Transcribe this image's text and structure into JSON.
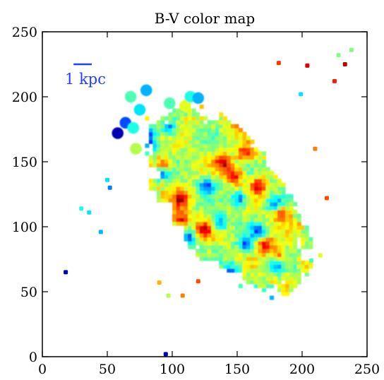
{
  "chart_data": {
    "type": "heatmap",
    "title": "B-V color map",
    "xlabel": "",
    "ylabel": "",
    "xlim": [
      0,
      250
    ],
    "ylim": [
      0,
      250
    ],
    "x_ticks": [
      0,
      50,
      100,
      150,
      200,
      250
    ],
    "y_ticks": [
      0,
      50,
      100,
      150,
      200,
      250
    ],
    "x_tick_labels": [
      "0",
      "50",
      "100",
      "150",
      "200",
      "250"
    ],
    "y_tick_labels": [
      "0",
      "50",
      "100",
      "150",
      "200",
      "250"
    ],
    "grid": false,
    "colormap": "jet",
    "scale_bar": {
      "label": "1 kpc",
      "x_start": 24,
      "x_end": 38,
      "y": 225
    },
    "galaxy": {
      "center": [
        140,
        120
      ],
      "major_axis_angle_deg": -52,
      "semi_major": 85,
      "semi_minor": 42
    },
    "red_regions": [
      [
        138,
        148
      ],
      [
        147,
        138
      ],
      [
        155,
        155
      ],
      [
        165,
        130
      ],
      [
        182,
        110
      ],
      [
        92,
        146
      ],
      [
        105,
        120
      ],
      [
        170,
        85
      ],
      [
        123,
        96
      ],
      [
        180,
        75
      ],
      [
        105,
        105
      ],
      [
        150,
        180
      ]
    ],
    "blue_regions": [
      [
        68,
        158
      ],
      [
        80,
        170
      ],
      [
        90,
        140
      ],
      [
        125,
        130
      ],
      [
        135,
        102
      ],
      [
        155,
        85
      ],
      [
        165,
        95
      ],
      [
        178,
        115
      ],
      [
        112,
        90
      ],
      [
        150,
        120
      ],
      [
        82,
        160
      ],
      [
        96,
        175
      ],
      [
        58,
        174
      ],
      [
        145,
        65
      ],
      [
        178,
        70
      ],
      [
        175,
        45
      ]
    ],
    "outlying_pixels": [
      {
        "x": 233,
        "y": 225,
        "value": 0.95
      },
      {
        "x": 204,
        "y": 224,
        "value": 0.9
      },
      {
        "x": 182,
        "y": 226,
        "value": 0.82
      },
      {
        "x": 199,
        "y": 202,
        "value": 0.35
      },
      {
        "x": 210,
        "y": 160,
        "value": 0.75
      },
      {
        "x": 219,
        "y": 122,
        "value": 0.8
      },
      {
        "x": 214,
        "y": 78,
        "value": 0.6
      },
      {
        "x": 207,
        "y": 74,
        "value": 0.45
      },
      {
        "x": 18,
        "y": 65,
        "value": 0.05
      },
      {
        "x": 30,
        "y": 114,
        "value": 0.4
      },
      {
        "x": 36,
        "y": 111,
        "value": 0.35
      },
      {
        "x": 45,
        "y": 96,
        "value": 0.3
      },
      {
        "x": 50,
        "y": 136,
        "value": 0.35
      },
      {
        "x": 52,
        "y": 130,
        "value": 0.25
      },
      {
        "x": 95,
        "y": 2,
        "value": 0.05
      },
      {
        "x": 90,
        "y": 57,
        "value": 0.7
      },
      {
        "x": 97,
        "y": 47,
        "value": 0.55
      },
      {
        "x": 108,
        "y": 47,
        "value": 0.75
      },
      {
        "x": 120,
        "y": 58,
        "value": 0.8
      },
      {
        "x": 228,
        "y": 232,
        "value": 0.5
      },
      {
        "x": 238,
        "y": 236,
        "value": 0.5
      },
      {
        "x": 225,
        "y": 212,
        "value": 0.85
      }
    ]
  },
  "colors": {
    "scale_bar": "#1f3fff",
    "axes": "#000000",
    "background": "#ffffff"
  }
}
